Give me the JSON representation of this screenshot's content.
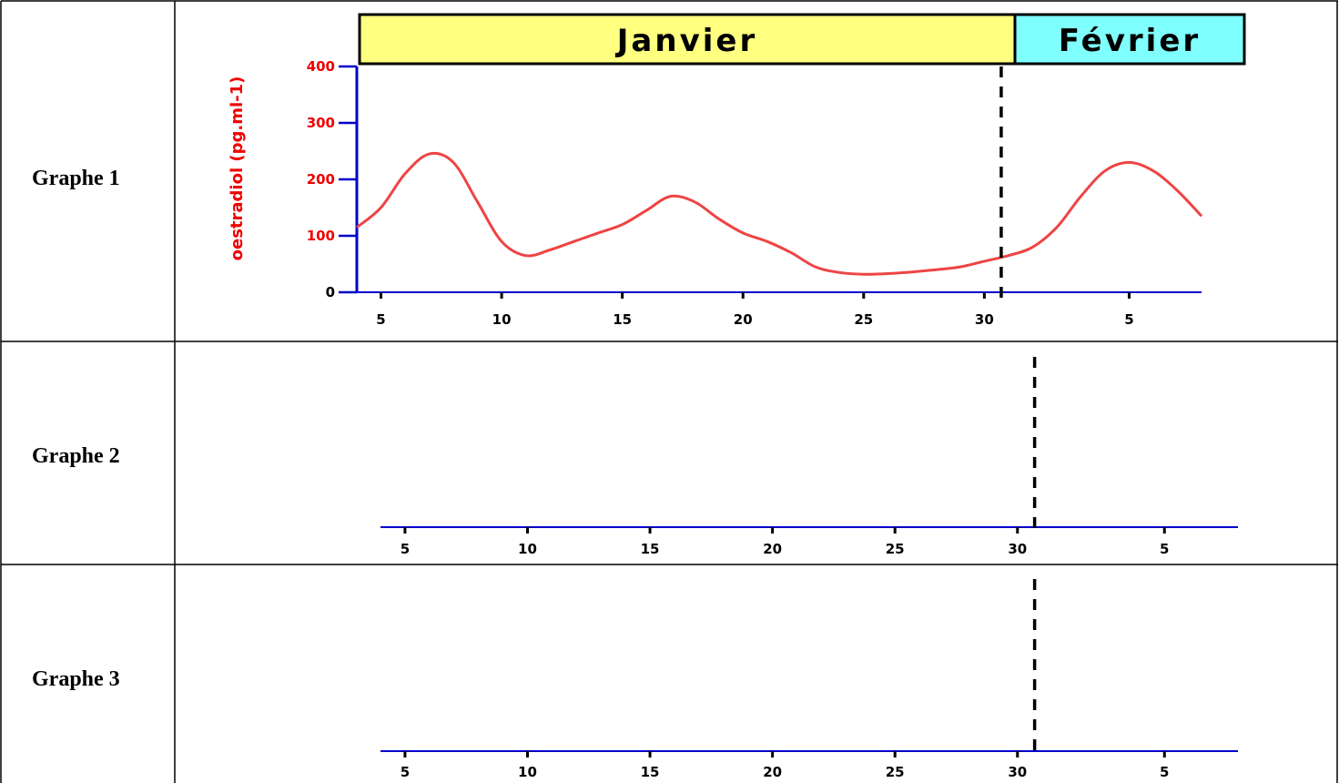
{
  "table": {
    "rows": [
      {
        "label": "Graphe 1"
      },
      {
        "label": "Graphe 2"
      },
      {
        "label": "Graphe 3"
      }
    ]
  },
  "colors": {
    "curve": "#ee4444",
    "axis": "#0000cc",
    "ytick_text": "#ee0000",
    "janvier_band": "#ffff80",
    "fevrier_band": "#80ffff",
    "separator": "#000000"
  },
  "chart_data": [
    {
      "type": "line",
      "months": [
        {
          "name": "Janvier",
          "from_day": 4,
          "to_day": 31
        },
        {
          "name": "Février",
          "from_day": 31,
          "to_day": 39
        }
      ],
      "x_tick_labels": [
        "5",
        "10",
        "15",
        "20",
        "25",
        "30",
        "5"
      ],
      "x_tick_days": [
        5,
        10,
        15,
        20,
        25,
        30,
        36
      ],
      "xlim": [
        4,
        39
      ],
      "ylabel": "oestradiol (pg.ml-1)",
      "y_ticks": [
        0,
        100,
        200,
        300,
        400
      ],
      "ylim": [
        0,
        400
      ],
      "month_boundary_day": 30.7,
      "series": [
        {
          "x": [
            4,
            5,
            6,
            7,
            8,
            9,
            10,
            11,
            12,
            13,
            14,
            15,
            16,
            17,
            18,
            19,
            20,
            21,
            22,
            23,
            24,
            25,
            26,
            27,
            28,
            29,
            30,
            31,
            32,
            33,
            34,
            35,
            36,
            37,
            38,
            39
          ],
          "values": [
            115,
            150,
            210,
            245,
            230,
            160,
            90,
            65,
            75,
            90,
            105,
            120,
            145,
            170,
            160,
            130,
            105,
            90,
            70,
            45,
            35,
            32,
            33,
            36,
            40,
            45,
            55,
            65,
            80,
            115,
            170,
            215,
            230,
            215,
            180,
            135
          ]
        }
      ]
    },
    {
      "type": "line",
      "x_tick_labels": [
        "5",
        "10",
        "15",
        "20",
        "25",
        "30",
        "5"
      ],
      "x_tick_days": [
        5,
        10,
        15,
        20,
        25,
        30,
        36
      ],
      "xlim": [
        4,
        39
      ],
      "month_boundary_day": 30.7,
      "series": []
    },
    {
      "type": "line",
      "x_tick_labels": [
        "5",
        "10",
        "15",
        "20",
        "25",
        "30",
        "5"
      ],
      "x_tick_days": [
        5,
        10,
        15,
        20,
        25,
        30,
        36
      ],
      "xlim": [
        4,
        39
      ],
      "month_boundary_day": 30.7,
      "series": []
    }
  ]
}
